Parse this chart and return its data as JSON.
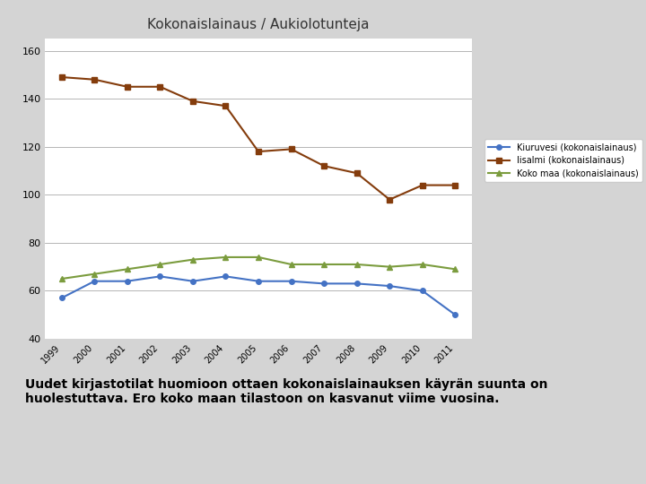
{
  "title": "Kokonaislainaus / Aukiolotunteja",
  "years": [
    1999,
    2000,
    2001,
    2002,
    2003,
    2004,
    2005,
    2006,
    2007,
    2008,
    2009,
    2010,
    2011
  ],
  "kiuruvesi": [
    57,
    64,
    64,
    66,
    64,
    66,
    64,
    64,
    63,
    63,
    62,
    60,
    50
  ],
  "iisalmi": [
    149,
    148,
    145,
    145,
    139,
    137,
    118,
    119,
    112,
    109,
    98,
    104,
    104
  ],
  "koko_maa": [
    65,
    67,
    69,
    71,
    73,
    74,
    74,
    71,
    71,
    71,
    70,
    71,
    69
  ],
  "ylim": [
    40,
    165
  ],
  "yticks": [
    40,
    60,
    80,
    100,
    120,
    140,
    160
  ],
  "color_kiuruvesi": "#4472C4",
  "color_iisalmi": "#843C0C",
  "color_koko_maa": "#7B9C3E",
  "legend_kiuruvesi": "Kiuruvesi (kokonaislainaus)",
  "legend_iisalmi": "Iisalmi (kokonaislainaus)",
  "legend_koko_maa": "Koko maa (kokonaislainaus)",
  "caption": "Uudet kirjastotilat huomioon ottaen kokonaislainauksen käyrän suunta on\nhuolestuttava. Ero koko maan tilastoon on kasvanut viime vuosina.",
  "bg_color": "#FFFFFF",
  "bg_outer": "#D4D4D4"
}
